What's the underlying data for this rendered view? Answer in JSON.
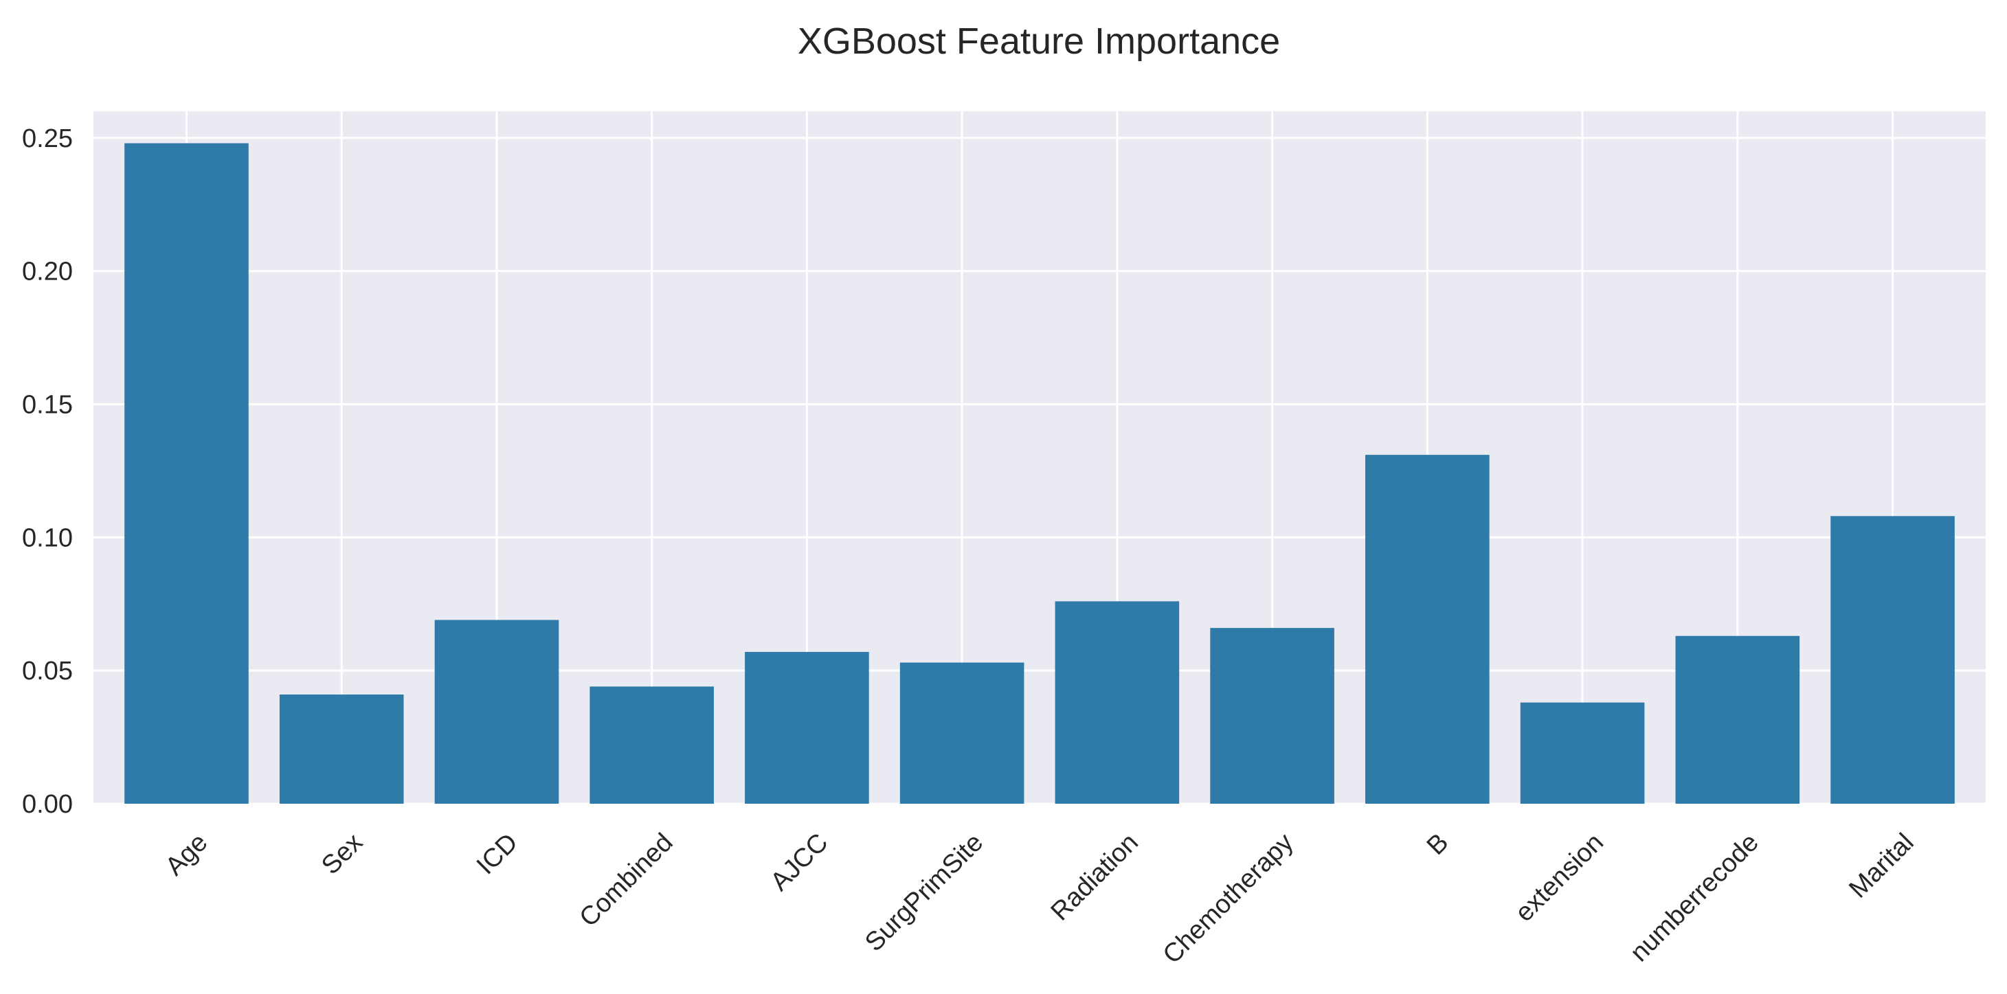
{
  "chart_data": {
    "type": "bar",
    "title": "XGBoost Feature Importance",
    "xlabel": "",
    "ylabel": "",
    "categories": [
      "Age",
      "Sex",
      "ICD",
      "Combined",
      "AJCC",
      "SurgPrimSite",
      "Radiation",
      "Chemotherapy",
      "B",
      "extension",
      "numberrecode",
      "Marital"
    ],
    "values": [
      0.248,
      0.041,
      0.069,
      0.044,
      0.057,
      0.053,
      0.076,
      0.066,
      0.131,
      0.038,
      0.063,
      0.108
    ],
    "ylim": [
      0,
      0.26
    ],
    "yticks": [
      "0.00",
      "0.05",
      "0.10",
      "0.15",
      "0.20",
      "0.25"
    ],
    "x_tick_rotation_deg": 45,
    "grid": true,
    "legend": "none",
    "colors": {
      "bar": "#2e7aa9",
      "plot_background": "#eaeaf2",
      "grid": "#ffffff",
      "text": "#262626"
    }
  }
}
